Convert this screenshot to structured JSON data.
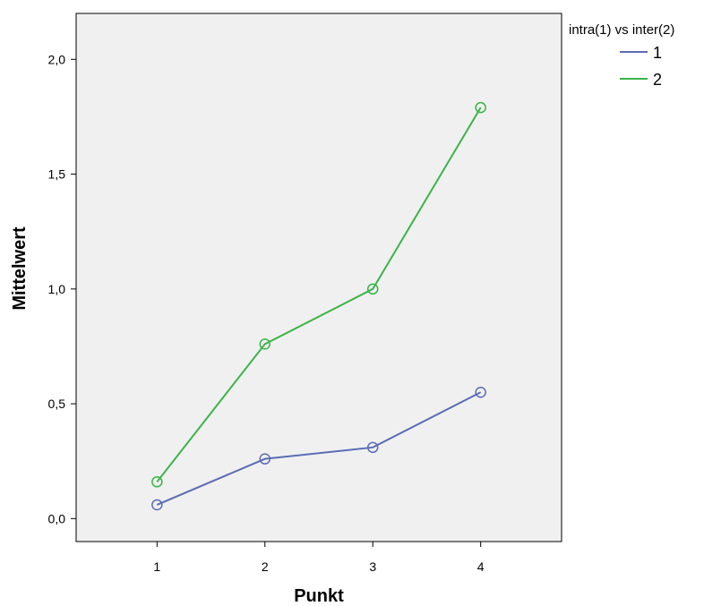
{
  "chart_data": {
    "type": "line",
    "xlabel": "Punkt",
    "ylabel": "Mittelwert",
    "x": [
      1,
      2,
      3,
      4
    ],
    "xticks": [
      "1",
      "2",
      "3",
      "4"
    ],
    "xlim": [
      0.25,
      4.75
    ],
    "ylim": [
      -0.1,
      2.2
    ],
    "yticks": [
      0.0,
      0.5,
      1.0,
      1.5,
      2.0
    ],
    "ytick_labels": [
      "0,0",
      "0,5",
      "1,0",
      "1,5",
      "2,0"
    ],
    "grid": false,
    "legend": {
      "title": "intra(1) vs inter(2)",
      "position": "top-right outside"
    },
    "series": [
      {
        "name": "1",
        "color": "#5b6cb5",
        "values": [
          0.06,
          0.26,
          0.31,
          0.55
        ]
      },
      {
        "name": "2",
        "color": "#3cb34a",
        "values": [
          0.16,
          0.76,
          1.0,
          1.79
        ]
      }
    ],
    "plot_background": "#f0f0f0"
  }
}
